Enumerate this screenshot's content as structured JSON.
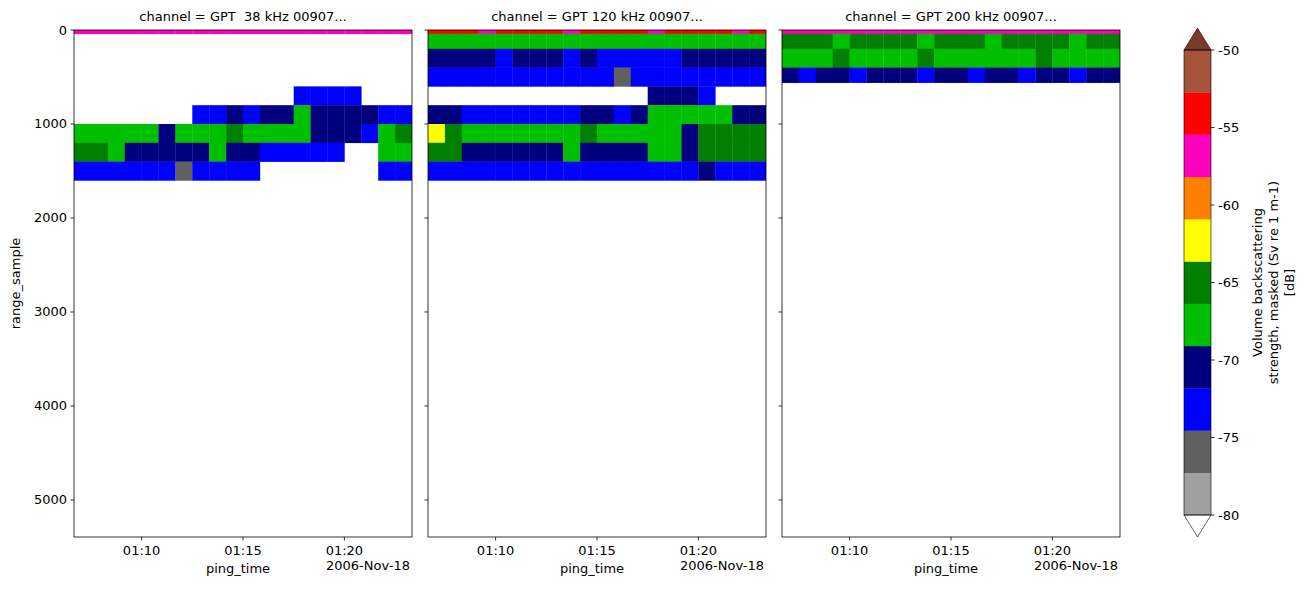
{
  "chart_data": [
    {
      "type": "heatmap",
      "title": "channel = GPT  38 kHz 00907...",
      "xlabel": "ping_time",
      "ylabel": "range_sample",
      "annotation": "2006-Nov-18",
      "xlim": [
        "2006-11-18T01:06:40",
        "2006-11-18T01:23:20"
      ],
      "xticks": [
        {
          "value": "2006-11-18T01:10:00",
          "label": "01:10"
        },
        {
          "value": "2006-11-18T01:15:00",
          "label": "01:15"
        },
        {
          "value": "2006-11-18T01:20:00",
          "label": "01:20"
        }
      ],
      "ylim": [
        0,
        5394
      ],
      "yticks": [
        0,
        1000,
        2000,
        3000,
        4000,
        5000
      ],
      "x_edges": [
        "2006-11-18T01:06:40",
        "2006-11-18T01:07:30",
        "2006-11-18T01:08:20",
        "2006-11-18T01:09:10",
        "2006-11-18T01:10:00",
        "2006-11-18T01:10:50",
        "2006-11-18T01:11:40",
        "2006-11-18T01:12:30",
        "2006-11-18T01:13:20",
        "2006-11-18T01:14:10",
        "2006-11-18T01:15:00",
        "2006-11-18T01:15:50",
        "2006-11-18T01:16:40",
        "2006-11-18T01:17:30",
        "2006-11-18T01:18:20",
        "2006-11-18T01:19:10",
        "2006-11-18T01:20:00",
        "2006-11-18T01:20:50",
        "2006-11-18T01:21:40",
        "2006-11-18T01:22:30",
        "2006-11-18T01:23:20"
      ],
      "y_edges": [
        0,
        40,
        200,
        400,
        600,
        800,
        1000,
        1200,
        1400,
        1600,
        1800,
        2000,
        2400,
        2800,
        3200,
        3600,
        4000,
        4400,
        4800,
        5400
      ],
      "cells": [
        [
          -58,
          -57,
          -58,
          -58,
          -57,
          -58,
          -58,
          -57,
          -58,
          -58,
          -57,
          -58,
          -58,
          -57,
          -58,
          -58,
          -57,
          -58,
          -58,
          -57
        ],
        [
          null,
          null,
          null,
          null,
          null,
          null,
          null,
          null,
          null,
          null,
          null,
          null,
          null,
          null,
          null,
          null,
          null,
          null,
          null,
          null
        ],
        [
          null,
          null,
          null,
          null,
          null,
          null,
          null,
          null,
          null,
          null,
          null,
          null,
          null,
          null,
          null,
          null,
          null,
          null,
          null,
          null
        ],
        [
          null,
          null,
          null,
          null,
          null,
          null,
          null,
          null,
          null,
          null,
          null,
          null,
          null,
          null,
          null,
          null,
          null,
          null,
          null,
          null
        ],
        [
          null,
          null,
          null,
          null,
          null,
          null,
          null,
          null,
          null,
          null,
          null,
          null,
          null,
          -74,
          -73,
          -74,
          -74,
          null,
          null,
          null
        ],
        [
          null,
          null,
          null,
          null,
          null,
          null,
          null,
          -72,
          -72,
          -71,
          -72,
          -70,
          -70,
          -69,
          -70,
          -70,
          -71,
          -70,
          -73,
          -73
        ],
        [
          -68,
          -67,
          -68,
          -69,
          -69,
          -70,
          -69,
          -67,
          -67,
          -66,
          -67,
          -68,
          -68,
          -69,
          -70,
          -70,
          -71,
          -72,
          -67,
          -66
        ],
        [
          -64,
          -66,
          -68,
          -70,
          -70,
          -71,
          -70,
          -70,
          -69,
          -70,
          -71,
          -73,
          -73,
          -73,
          -74,
          -73,
          null,
          null,
          -69,
          -68
        ],
        [
          -72,
          -72,
          -73,
          -74,
          -74,
          -74,
          -75,
          -74,
          -74,
          -74,
          -74,
          null,
          null,
          null,
          null,
          null,
          null,
          null,
          -74,
          -74
        ],
        [
          null,
          null,
          null,
          null,
          null,
          null,
          null,
          null,
          null,
          null,
          null,
          null,
          null,
          null,
          null,
          null,
          null,
          null,
          null,
          null
        ],
        [
          null,
          null,
          null,
          null,
          null,
          null,
          null,
          null,
          null,
          null,
          null,
          null,
          null,
          null,
          null,
          null,
          null,
          null,
          null,
          null
        ],
        [
          null,
          null,
          null,
          null,
          null,
          null,
          null,
          null,
          null,
          null,
          null,
          null,
          null,
          null,
          null,
          null,
          null,
          null,
          null,
          null
        ],
        [
          null,
          null,
          null,
          null,
          null,
          null,
          null,
          null,
          null,
          null,
          null,
          null,
          null,
          null,
          null,
          null,
          null,
          null,
          null,
          null
        ],
        [
          null,
          null,
          null,
          null,
          null,
          null,
          null,
          null,
          null,
          null,
          null,
          null,
          null,
          null,
          null,
          null,
          null,
          null,
          null,
          null
        ],
        [
          null,
          null,
          null,
          null,
          null,
          null,
          null,
          null,
          null,
          null,
          null,
          null,
          null,
          null,
          null,
          null,
          null,
          null,
          null,
          null
        ],
        [
          null,
          null,
          null,
          null,
          null,
          null,
          null,
          null,
          null,
          null,
          null,
          null,
          null,
          null,
          null,
          null,
          null,
          null,
          null,
          null
        ],
        [
          null,
          null,
          null,
          null,
          null,
          null,
          null,
          null,
          null,
          null,
          null,
          null,
          null,
          null,
          null,
          null,
          null,
          null,
          null,
          null
        ],
        [
          null,
          null,
          null,
          null,
          null,
          null,
          null,
          null,
          null,
          null,
          null,
          null,
          null,
          null,
          null,
          null,
          null,
          null,
          null,
          null
        ],
        [
          null,
          null,
          null,
          null,
          null,
          null,
          null,
          null,
          null,
          null,
          null,
          null,
          null,
          null,
          null,
          null,
          null,
          null,
          null,
          null
        ]
      ]
    },
    {
      "type": "heatmap",
      "title": "channel = GPT 120 kHz 00907...",
      "xlabel": "ping_time",
      "annotation": "2006-Nov-18",
      "tick_labels": "x",
      "xlim": [
        "2006-11-18T01:06:40",
        "2006-11-18T01:23:20"
      ],
      "xticks": [
        {
          "value": "2006-11-18T01:10:00",
          "label": "01:10"
        },
        {
          "value": "2006-11-18T01:15:00",
          "label": "01:15"
        },
        {
          "value": "2006-11-18T01:20:00",
          "label": "01:20"
        }
      ],
      "ylim": [
        0,
        5394
      ],
      "yticks": [
        0,
        1000,
        2000,
        3000,
        4000,
        5000
      ],
      "x_edges": [
        "2006-11-18T01:06:40",
        "2006-11-18T01:07:30",
        "2006-11-18T01:08:20",
        "2006-11-18T01:09:10",
        "2006-11-18T01:10:00",
        "2006-11-18T01:10:50",
        "2006-11-18T01:11:40",
        "2006-11-18T01:12:30",
        "2006-11-18T01:13:20",
        "2006-11-18T01:14:10",
        "2006-11-18T01:15:00",
        "2006-11-18T01:15:50",
        "2006-11-18T01:16:40",
        "2006-11-18T01:17:30",
        "2006-11-18T01:18:20",
        "2006-11-18T01:19:10",
        "2006-11-18T01:20:00",
        "2006-11-18T01:20:50",
        "2006-11-18T01:21:40",
        "2006-11-18T01:22:30",
        "2006-11-18T01:23:20"
      ],
      "y_edges": [
        0,
        40,
        200,
        400,
        600,
        800,
        1000,
        1200,
        1400,
        1600
      ],
      "cells": [
        [
          -55,
          -54,
          -55,
          -56,
          -55,
          -54,
          -55,
          -55,
          -56,
          -55,
          -54,
          -55,
          -55,
          -56,
          -55,
          -54,
          -55,
          -55,
          -56,
          -55
        ],
        [
          -68,
          -67,
          -68,
          -68,
          -69,
          -68,
          -67,
          -68,
          -69,
          -68,
          -68,
          -67,
          -68,
          -69,
          -68,
          -68,
          -67,
          -68,
          -68,
          -69
        ],
        [
          -71,
          -70,
          -71,
          -71,
          -72,
          -71,
          -70,
          -71,
          -72,
          -71,
          -72,
          -73,
          -73,
          -73,
          -72,
          -71,
          -71,
          -70,
          -71,
          -71
        ],
        [
          -73,
          -73,
          -72,
          -73,
          -73,
          -74,
          -73,
          -73,
          -74,
          -74,
          -74,
          -75,
          -74,
          -74,
          -74,
          -73,
          -74,
          -74,
          -74,
          -74
        ],
        [
          null,
          null,
          null,
          null,
          null,
          null,
          null,
          null,
          null,
          null,
          null,
          null,
          null,
          -71,
          -70,
          -70,
          -72,
          null,
          null,
          null
        ],
        [
          -70,
          -71,
          -73,
          -73,
          -74,
          -73,
          -73,
          -72,
          -73,
          -71,
          -71,
          -72,
          -71,
          -68,
          -68,
          -69,
          -68,
          -69,
          -70,
          -71
        ],
        [
          -63,
          -64,
          -68,
          -68,
          -69,
          -68,
          -68,
          -67,
          -67,
          -66,
          -67,
          -68,
          -67,
          -69,
          -69,
          -70,
          -65,
          -64,
          -64,
          -65
        ],
        [
          -64,
          -66,
          -70,
          -70,
          -71,
          -70,
          -70,
          -70,
          -69,
          -70,
          -70,
          -71,
          -70,
          -69,
          -69,
          -70,
          -66,
          -65,
          -64,
          -66
        ],
        [
          -72,
          -72,
          -72,
          -73,
          -73,
          -73,
          -74,
          -73,
          -73,
          -73,
          -73,
          -74,
          -73,
          -72,
          -72,
          -72,
          -71,
          -72,
          -72,
          -72
        ]
      ]
    },
    {
      "type": "heatmap",
      "title": "channel = GPT 200 kHz 00907...",
      "xlabel": "ping_time",
      "annotation": "2006-Nov-18",
      "tick_labels": "x",
      "xlim": [
        "2006-11-18T01:06:40",
        "2006-11-18T01:23:20"
      ],
      "xticks": [
        {
          "value": "2006-11-18T01:10:00",
          "label": "01:10"
        },
        {
          "value": "2006-11-18T01:15:00",
          "label": "01:15"
        },
        {
          "value": "2006-11-18T01:20:00",
          "label": "01:20"
        }
      ],
      "ylim": [
        0,
        5394
      ],
      "yticks": [
        0,
        1000,
        2000,
        3000,
        4000,
        5000
      ],
      "x_edges": [
        "2006-11-18T01:06:40",
        "2006-11-18T01:07:30",
        "2006-11-18T01:08:20",
        "2006-11-18T01:09:10",
        "2006-11-18T01:10:00",
        "2006-11-18T01:10:50",
        "2006-11-18T01:11:40",
        "2006-11-18T01:12:30",
        "2006-11-18T01:13:20",
        "2006-11-18T01:14:10",
        "2006-11-18T01:15:00",
        "2006-11-18T01:15:50",
        "2006-11-18T01:16:40",
        "2006-11-18T01:17:30",
        "2006-11-18T01:18:20",
        "2006-11-18T01:19:10",
        "2006-11-18T01:20:00",
        "2006-11-18T01:20:50",
        "2006-11-18T01:21:40",
        "2006-11-18T01:22:30",
        "2006-11-18T01:23:20"
      ],
      "y_edges": [
        0,
        40,
        200,
        400,
        560
      ],
      "cells": [
        [
          -57,
          -56,
          -57,
          -58,
          -56,
          -57,
          -57,
          -56,
          -57,
          -58,
          -57,
          -56,
          -57,
          -57,
          -56,
          -58,
          -57,
          -56,
          -57,
          -57
        ],
        [
          -66,
          -65,
          -66,
          -67,
          -66,
          -65,
          -66,
          -66,
          -67,
          -66,
          -65,
          -66,
          -67,
          -66,
          -66,
          -65,
          -66,
          -67,
          -66,
          -66
        ],
        [
          -67,
          -68,
          -67,
          -66,
          -67,
          -68,
          -67,
          -67,
          -66,
          -67,
          -68,
          -67,
          -67,
          -68,
          -67,
          -66,
          -67,
          -68,
          -67,
          -67
        ],
        [
          -71,
          -72,
          -71,
          -71,
          -72,
          -71,
          -70,
          -71,
          -72,
          -71,
          -71,
          -72,
          -71,
          -71,
          -72,
          -71,
          -71,
          -72,
          -71,
          -71
        ]
      ],
      "colorbar": {
        "label": "Volume backscattering strength, masked (Sv re 1 m-1) [dB]",
        "range": [
          -80,
          -50
        ],
        "ticks": [
          -80,
          -75,
          -70,
          -65,
          -60,
          -55,
          -50
        ],
        "colors": [
          "#a0a0a0",
          "#606060",
          "#0000ff",
          "#00007f",
          "#00bf00",
          "#007f00",
          "#ffff00",
          "#ff7f00",
          "#ff00bf",
          "#ff0000",
          "#a6533c"
        ]
      }
    }
  ]
}
